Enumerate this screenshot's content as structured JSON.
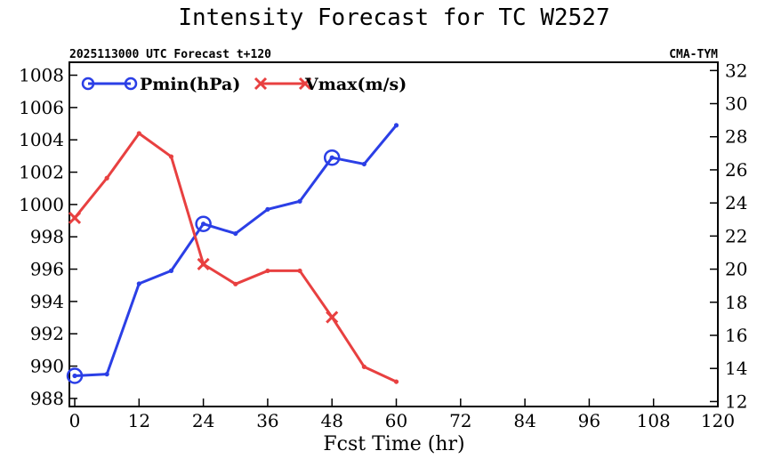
{
  "chart_data": {
    "type": "line",
    "title": "Intensity Forecast for TC W2527",
    "subtitle_left": "2025113000 UTC Forecast t+120",
    "subtitle_right": "CMA-TYM",
    "xlabel": "Fcst Time (hr)",
    "xlim": [
      -1,
      120
    ],
    "xticks": [
      0,
      12,
      24,
      36,
      48,
      60,
      72,
      84,
      96,
      108,
      120
    ],
    "ylim_left": [
      987.5,
      1008.8
    ],
    "yticks_left": [
      988,
      990,
      992,
      994,
      996,
      998,
      1000,
      1002,
      1004,
      1006,
      1008
    ],
    "ylim_right": [
      11.7,
      32.5
    ],
    "yticks_right": [
      12,
      14,
      16,
      18,
      20,
      22,
      24,
      26,
      28,
      30,
      32
    ],
    "x": [
      0,
      6,
      12,
      18,
      24,
      30,
      36,
      42,
      48,
      54,
      60
    ],
    "series": [
      {
        "name": "Pmin(hPa)",
        "axis": "left",
        "color": "#2b3fe6",
        "marker": "circle",
        "marker_every": 24,
        "values": [
          989.4,
          989.5,
          995.1,
          995.9,
          998.8,
          998.2,
          999.7,
          1000.2,
          1002.9,
          1002.5,
          1004.9
        ]
      },
      {
        "name": "Vmax(m/s)",
        "axis": "right",
        "color": "#e84040",
        "marker": "x",
        "marker_every": 24,
        "values": [
          23.1,
          25.5,
          28.2,
          26.8,
          20.3,
          19.1,
          19.9,
          19.9,
          17.1,
          14.1,
          13.2
        ]
      }
    ],
    "legend_location": "top-left"
  }
}
